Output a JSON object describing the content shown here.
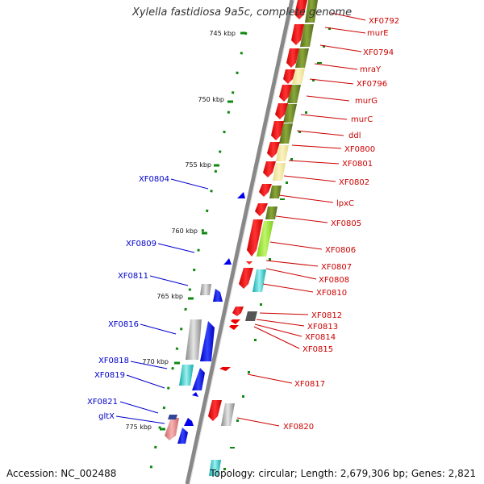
{
  "title": "Xylella fastidiosa 9a5c, complete genome",
  "accession": "Accession: NC_002488",
  "topology": "Topology: circular; Length: 2,679,306 bp; Genes: 2,821",
  "scale_labels": [
    "745 kbp",
    "750 kbp",
    "755 kbp",
    "760 kbp",
    "765 kbp",
    "770 kbp",
    "775 kbp"
  ],
  "right_genes": [
    "XF0792",
    "murE",
    "XF0794",
    "mraY",
    "XF0796",
    "murG",
    "murC",
    "ddl",
    "XF0800",
    "XF0801",
    "XF0802",
    "lpxC",
    "XF0805",
    "XF0806",
    "XF0807",
    "XF0808",
    "XF0810",
    "XF0812",
    "XF0813",
    "XF0814",
    "XF0815",
    "XF0817",
    "XF0820"
  ],
  "left_genes": [
    "XF0804",
    "XF0809",
    "XF0811",
    "XF0816",
    "XF0818",
    "XF0819",
    "XF0821",
    "gltX"
  ],
  "colors": {
    "forward_gene": "#ee0000",
    "reverse_gene": "#0000ee",
    "right_label": "#cc0000",
    "left_label": "#0000cc",
    "backbone": "#888888",
    "scale_dots": "#118811",
    "cog_olive": "#6b8e23",
    "cog_yellow": "#f0e68c",
    "cog_lime": "#99e633",
    "cog_cyan": "#22cccc",
    "cog_gray": "#aaaaaa"
  }
}
